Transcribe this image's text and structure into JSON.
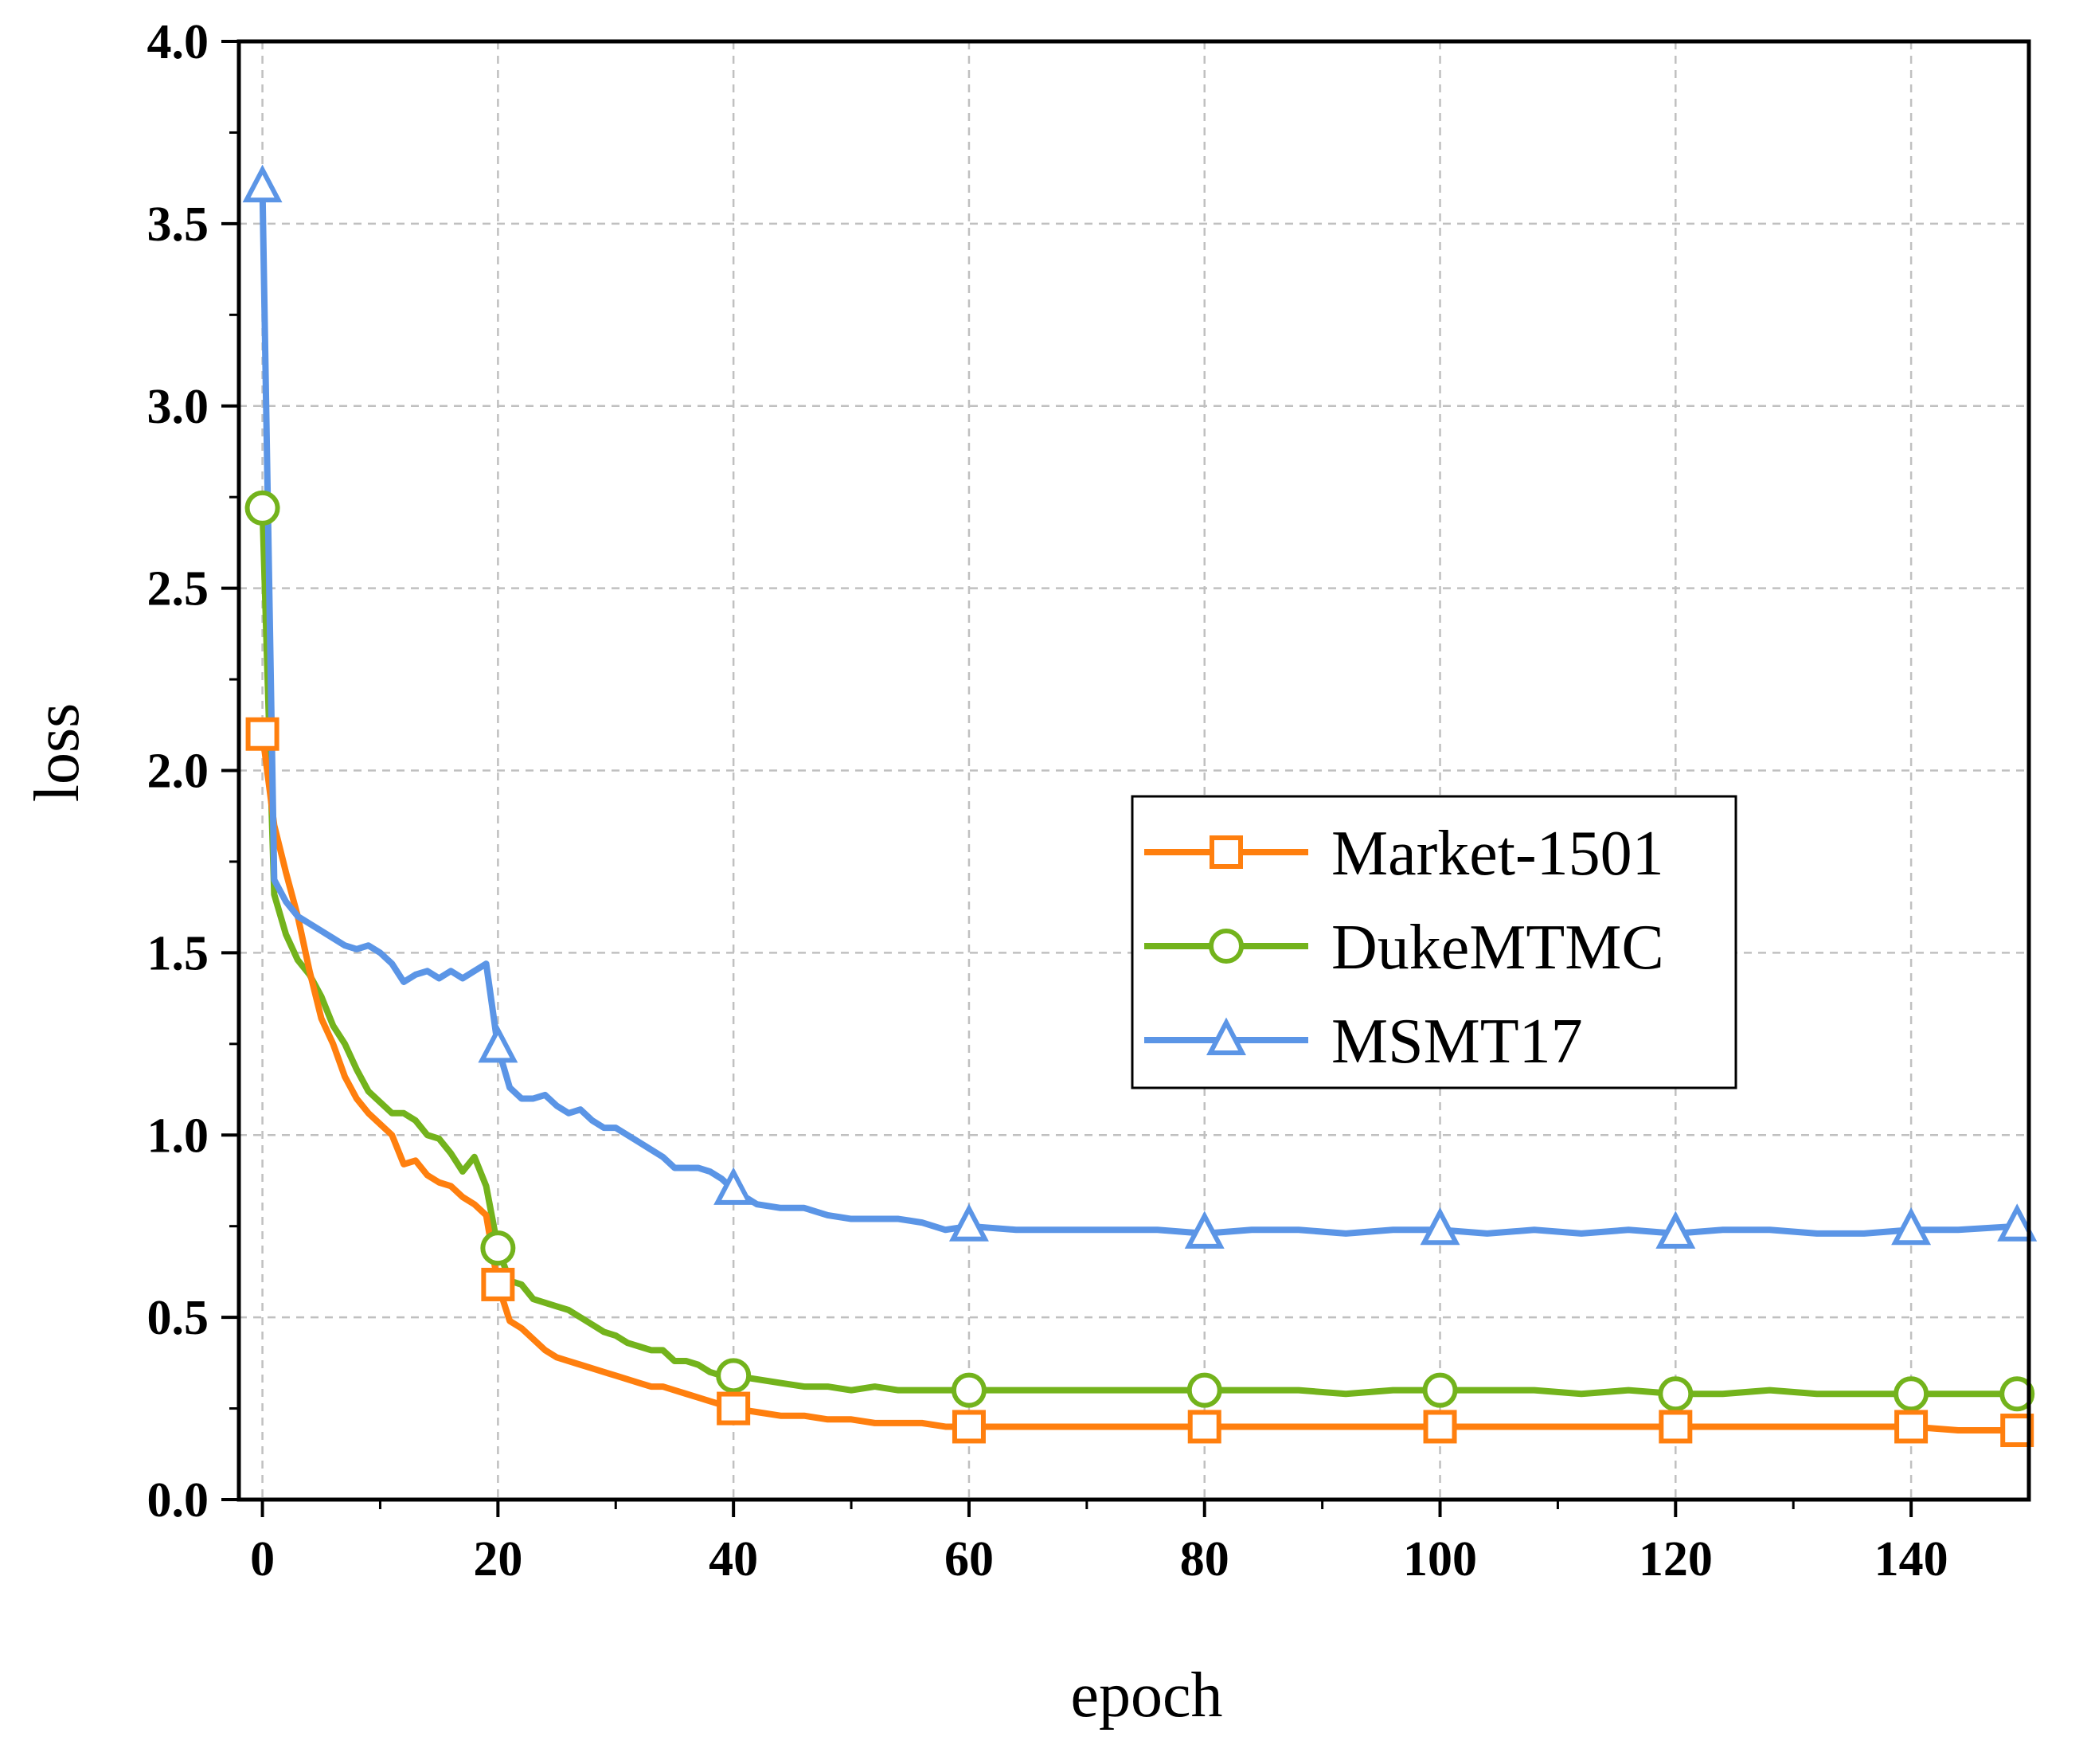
{
  "chart_data": {
    "type": "line",
    "title": "",
    "xlabel": "epoch",
    "ylabel": "loss",
    "xlim": [
      -2,
      150
    ],
    "ylim": [
      0.0,
      4.0
    ],
    "xticks": [
      0,
      20,
      40,
      60,
      80,
      100,
      120,
      140
    ],
    "xtick_labels": [
      "0",
      "20",
      "40",
      "60",
      "80",
      "100",
      "120",
      "140"
    ],
    "yticks": [
      0.0,
      0.5,
      1.0,
      1.5,
      2.0,
      2.5,
      3.0,
      3.5,
      4.0
    ],
    "ytick_labels": [
      "0.0",
      "0.5",
      "1.0",
      "1.5",
      "2.0",
      "2.5",
      "3.0",
      "3.5",
      "4.0"
    ],
    "grid": true,
    "legend_position": "right-middle",
    "series": [
      {
        "name": "Market-1501",
        "color": "#ff7f0e",
        "marker": "square",
        "x": [
          0,
          1,
          2,
          3,
          4,
          5,
          6,
          7,
          8,
          9,
          10,
          11,
          12,
          13,
          14,
          15,
          16,
          17,
          18,
          19,
          20,
          21,
          22,
          23,
          24,
          25,
          26,
          27,
          28,
          29,
          30,
          31,
          32,
          33,
          34,
          35,
          36,
          37,
          38,
          39,
          40,
          42,
          44,
          46,
          48,
          50,
          52,
          54,
          56,
          58,
          60,
          64,
          68,
          72,
          76,
          80,
          84,
          88,
          92,
          96,
          100,
          104,
          108,
          112,
          116,
          120,
          124,
          128,
          132,
          136,
          140,
          144,
          149
        ],
        "y": [
          2.1,
          1.85,
          1.72,
          1.6,
          1.45,
          1.32,
          1.25,
          1.16,
          1.1,
          1.06,
          1.03,
          1.0,
          0.92,
          0.93,
          0.89,
          0.87,
          0.86,
          0.83,
          0.81,
          0.78,
          0.59,
          0.49,
          0.47,
          0.44,
          0.41,
          0.39,
          0.38,
          0.37,
          0.36,
          0.35,
          0.34,
          0.33,
          0.32,
          0.31,
          0.31,
          0.3,
          0.29,
          0.28,
          0.27,
          0.26,
          0.25,
          0.24,
          0.23,
          0.23,
          0.22,
          0.22,
          0.21,
          0.21,
          0.21,
          0.2,
          0.2,
          0.2,
          0.2,
          0.2,
          0.2,
          0.2,
          0.2,
          0.2,
          0.2,
          0.2,
          0.2,
          0.2,
          0.2,
          0.2,
          0.2,
          0.2,
          0.2,
          0.2,
          0.2,
          0.2,
          0.2,
          0.19,
          0.19
        ],
        "marker_x": [
          0,
          20,
          40,
          60,
          80,
          100,
          120,
          140,
          149
        ],
        "marker_y": [
          2.1,
          0.59,
          0.25,
          0.2,
          0.2,
          0.2,
          0.2,
          0.2,
          0.19
        ]
      },
      {
        "name": "DukeMTMC",
        "color": "#73b31c",
        "marker": "circle",
        "x": [
          0,
          1,
          2,
          3,
          4,
          5,
          6,
          7,
          8,
          9,
          10,
          11,
          12,
          13,
          14,
          15,
          16,
          17,
          18,
          19,
          20,
          21,
          22,
          23,
          24,
          25,
          26,
          27,
          28,
          29,
          30,
          31,
          32,
          33,
          34,
          35,
          36,
          37,
          38,
          39,
          40,
          42,
          44,
          46,
          48,
          50,
          52,
          54,
          56,
          58,
          60,
          64,
          68,
          72,
          76,
          80,
          84,
          88,
          92,
          96,
          100,
          104,
          108,
          112,
          116,
          120,
          124,
          128,
          132,
          136,
          140,
          144,
          149
        ],
        "y": [
          2.72,
          1.66,
          1.55,
          1.48,
          1.44,
          1.38,
          1.3,
          1.25,
          1.18,
          1.12,
          1.09,
          1.06,
          1.06,
          1.04,
          1.0,
          0.99,
          0.95,
          0.9,
          0.94,
          0.86,
          0.69,
          0.6,
          0.59,
          0.55,
          0.54,
          0.53,
          0.52,
          0.5,
          0.48,
          0.46,
          0.45,
          0.43,
          0.42,
          0.41,
          0.41,
          0.38,
          0.38,
          0.37,
          0.35,
          0.34,
          0.34,
          0.33,
          0.32,
          0.31,
          0.31,
          0.3,
          0.31,
          0.3,
          0.3,
          0.3,
          0.3,
          0.3,
          0.3,
          0.3,
          0.3,
          0.3,
          0.3,
          0.3,
          0.29,
          0.3,
          0.3,
          0.3,
          0.3,
          0.29,
          0.3,
          0.29,
          0.29,
          0.3,
          0.29,
          0.29,
          0.29,
          0.29,
          0.29
        ],
        "marker_x": [
          0,
          20,
          40,
          60,
          80,
          100,
          120,
          140,
          149
        ],
        "marker_y": [
          2.72,
          0.69,
          0.34,
          0.3,
          0.3,
          0.3,
          0.29,
          0.29,
          0.29
        ]
      },
      {
        "name": "MSMT17",
        "color": "#5b95e6",
        "marker": "triangle",
        "x": [
          0,
          1,
          2,
          3,
          4,
          5,
          6,
          7,
          8,
          9,
          10,
          11,
          12,
          13,
          14,
          15,
          16,
          17,
          18,
          19,
          20,
          21,
          22,
          23,
          24,
          25,
          26,
          27,
          28,
          29,
          30,
          31,
          32,
          33,
          34,
          35,
          36,
          37,
          38,
          39,
          40,
          42,
          44,
          46,
          48,
          50,
          52,
          54,
          56,
          58,
          60,
          64,
          68,
          72,
          76,
          80,
          84,
          88,
          92,
          96,
          100,
          104,
          108,
          112,
          116,
          120,
          124,
          128,
          132,
          136,
          140,
          144,
          149
        ],
        "y": [
          3.6,
          1.7,
          1.64,
          1.6,
          1.58,
          1.56,
          1.54,
          1.52,
          1.51,
          1.52,
          1.5,
          1.47,
          1.42,
          1.44,
          1.45,
          1.43,
          1.45,
          1.43,
          1.45,
          1.47,
          1.24,
          1.13,
          1.1,
          1.1,
          1.11,
          1.08,
          1.06,
          1.07,
          1.04,
          1.02,
          1.02,
          1.0,
          0.98,
          0.96,
          0.94,
          0.91,
          0.91,
          0.91,
          0.9,
          0.88,
          0.85,
          0.81,
          0.8,
          0.8,
          0.78,
          0.77,
          0.77,
          0.77,
          0.76,
          0.74,
          0.75,
          0.74,
          0.74,
          0.74,
          0.74,
          0.73,
          0.74,
          0.74,
          0.73,
          0.74,
          0.74,
          0.73,
          0.74,
          0.73,
          0.74,
          0.73,
          0.74,
          0.74,
          0.73,
          0.73,
          0.74,
          0.74,
          0.75
        ],
        "marker_x": [
          0,
          20,
          40,
          60,
          80,
          100,
          120,
          140,
          149
        ],
        "marker_y": [
          3.6,
          1.24,
          0.85,
          0.75,
          0.73,
          0.74,
          0.73,
          0.74,
          0.75
        ]
      }
    ]
  }
}
